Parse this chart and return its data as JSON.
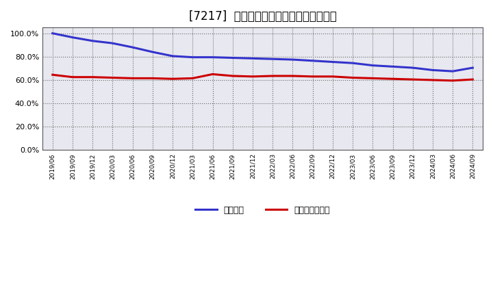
{
  "title": "[7217]  固定比率、固定長期適合率の推移",
  "x_labels": [
    "2019/06",
    "2019/09",
    "2019/12",
    "2020/03",
    "2020/06",
    "2020/09",
    "2020/12",
    "2021/03",
    "2021/06",
    "2021/09",
    "2021/12",
    "2022/03",
    "2022/06",
    "2022/09",
    "2022/12",
    "2023/03",
    "2023/06",
    "2023/09",
    "2023/12",
    "2024/03",
    "2024/06",
    "2024/09"
  ],
  "fixed_ratio": [
    100.0,
    96.5,
    93.5,
    91.5,
    88.0,
    84.0,
    80.5,
    79.5,
    79.5,
    79.0,
    78.5,
    78.0,
    77.5,
    76.5,
    75.5,
    74.5,
    72.5,
    71.5,
    70.5,
    68.5,
    67.5,
    70.5
  ],
  "fixed_long_ratio": [
    64.5,
    62.5,
    62.5,
    62.0,
    61.5,
    61.5,
    61.0,
    61.5,
    65.0,
    63.5,
    63.0,
    63.5,
    63.5,
    63.0,
    63.0,
    62.0,
    61.5,
    61.0,
    60.5,
    60.0,
    59.5,
    60.5
  ],
  "blue_color": "#3333cc",
  "red_color": "#cc0000",
  "plot_bg_color": "#e8e8f0",
  "fig_bg_color": "#ffffff",
  "grid_color": "#aaaaaa",
  "legend_fixed": "固定比率",
  "legend_fixed_long": "固定長期適合率",
  "ylim": [
    0,
    105
  ],
  "yticks": [
    0,
    20,
    40,
    60,
    80,
    100
  ],
  "title_fontsize": 12,
  "line_width": 2.2
}
